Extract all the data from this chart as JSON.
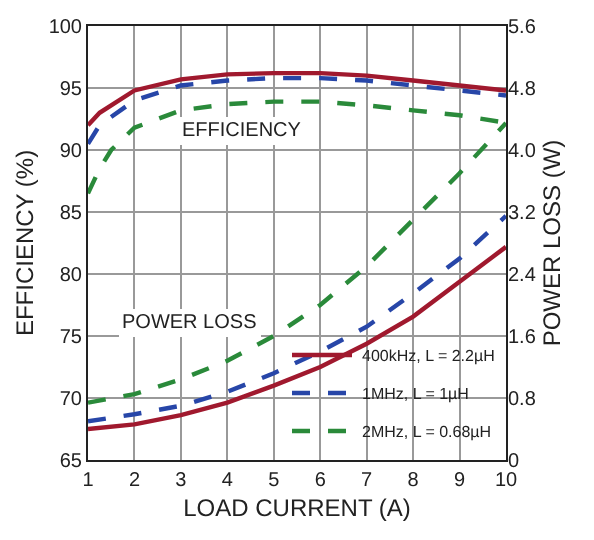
{
  "chart_data": {
    "type": "line",
    "xlabel": "LOAD CURRENT (A)",
    "ylabel": "EFFICIENCY (%)",
    "y2label": "POWER LOSS (W)",
    "xlim": [
      1,
      10
    ],
    "xticks": [
      1,
      2,
      3,
      4,
      5,
      6,
      7,
      8,
      9,
      10
    ],
    "ylim": [
      65,
      100
    ],
    "yticks": [
      65,
      70,
      75,
      80,
      85,
      90,
      95,
      100
    ],
    "y2lim": [
      0,
      5.6
    ],
    "y2ticks": [
      0,
      0.8,
      1.6,
      2.4,
      3.2,
      {
        "value": 4,
        "label": "4.0"
      },
      4.8,
      5.6
    ],
    "grid": true,
    "legend": "bottom right",
    "marker": "none",
    "annotations": [
      "EFFICIENCY",
      "POWER LOSS"
    ],
    "series": [
      {
        "name": "400kHz, L = 2.2µH",
        "color": "#a0192e",
        "line_style": "solid",
        "x": [
          1,
          1.25,
          2,
          3,
          4,
          5,
          6,
          7,
          8,
          9,
          10
        ],
        "values": [
          92,
          93,
          94.8,
          95.7,
          96.1,
          96.2,
          96.2,
          96,
          95.6,
          95.2,
          94.8
        ]
      },
      {
        "name": "1MHz, L = 1µH",
        "color": "#2746a8",
        "line_style": "dashed",
        "x": [
          1,
          1.25,
          2,
          3,
          4,
          5,
          6,
          7,
          8,
          9,
          10
        ],
        "values": [
          90.5,
          92,
          94,
          95.2,
          95.6,
          95.8,
          95.8,
          95.6,
          95.2,
          94.8,
          94.4
        ]
      },
      {
        "name": "2MHz, L = 0.68µH",
        "color": "#2a8a3a",
        "line_style": "dashed",
        "x": [
          1,
          1.25,
          1.5,
          2,
          3,
          4,
          5,
          6,
          7,
          8,
          9,
          10
        ],
        "values": [
          86.5,
          88.5,
          90,
          91.8,
          93.2,
          93.7,
          93.9,
          93.9,
          93.6,
          93.2,
          92.8,
          92.2
        ]
      },
      {
        "color": "#a0192e",
        "line_style": "solid",
        "axis": "y2",
        "x": [
          1,
          2,
          3,
          4,
          5,
          6,
          7,
          8,
          9,
          10
        ],
        "values": [
          0.4,
          0.46,
          0.58,
          0.74,
          0.96,
          1.2,
          1.5,
          1.85,
          2.3,
          2.75
        ]
      },
      {
        "color": "#2746a8",
        "line_style": "dashed",
        "axis": "y2",
        "x": [
          1,
          2,
          3,
          4,
          5,
          6,
          7,
          8,
          9,
          10
        ],
        "values": [
          0.5,
          0.59,
          0.7,
          0.88,
          1.12,
          1.4,
          1.72,
          2.15,
          2.6,
          3.15
        ]
      },
      {
        "color": "#2a8a3a",
        "line_style": "dashed",
        "axis": "y2",
        "x": [
          1,
          2,
          3,
          4,
          5,
          6,
          7,
          8,
          9,
          10
        ],
        "values": [
          0.74,
          0.85,
          1.04,
          1.28,
          1.6,
          2.0,
          2.5,
          3.1,
          3.7,
          4.35
        ]
      }
    ]
  }
}
